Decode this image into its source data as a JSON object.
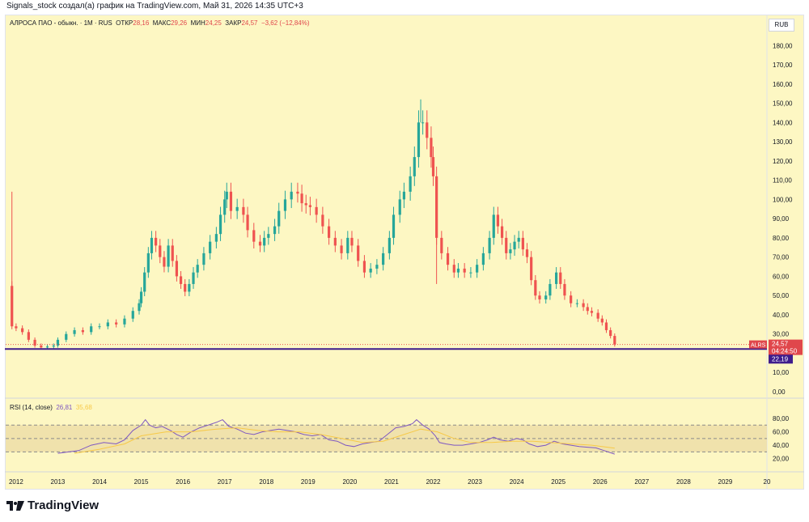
{
  "caption": "Signals_stock создал(а) график на TradingView.com, Май 31, 2026 14:35 UTC+3",
  "legend": {
    "symbol": "АЛРОСА ПАО - обыкн. · 1М · RUS",
    "open_label": "ОТКР",
    "open_value": "28,16",
    "high_label": "МАКС",
    "high_value": "29,26",
    "low_label": "МИН",
    "low_value": "24,25",
    "close_label": "ЗАКР",
    "close_value": "24,57",
    "change": "−3,62 (−12,84%)"
  },
  "rsi_legend": {
    "title": "RSI (14, close)",
    "rsi_value": "26,81",
    "ma_value": "35,68"
  },
  "currency": "RUB",
  "price_tag": {
    "ticker": "ALRS",
    "price": "24,57",
    "countdown": "04:24:50",
    "level": "22,19"
  },
  "colors": {
    "background": "#fdf7c3",
    "up": "#26a69a",
    "down": "#ef5350",
    "level_line": "#3f1d8c",
    "rsi": "#7e57c2",
    "rsi_ma": "#f7c948"
  },
  "brand": "TradingView",
  "brand_icon": "tradingview-logo-icon",
  "chart_data": [
    {
      "type": "candlestick",
      "title": "АЛРОСА ПАО - обыкн. · 1М · RUS",
      "y_axis_ticks": [
        "0,00",
        "10,00",
        "20,00",
        "30,00",
        "40,00",
        "50,00",
        "60,00",
        "70,00",
        "80,00",
        "90,00",
        "100,00",
        "110,00",
        "120,00",
        "130,00",
        "140,00",
        "150,00",
        "160,00",
        "170,00",
        "180,00"
      ],
      "x_axis_ticks": [
        "2012",
        "2013",
        "2014",
        "2015",
        "2016",
        "2017",
        "2018",
        "2019",
        "2020",
        "2021",
        "2022",
        "2023",
        "2024",
        "2025",
        "2026",
        "2027",
        "2028",
        "2029",
        "20"
      ],
      "ylim": [
        0,
        186
      ],
      "xlim": [
        2011.75,
        2030
      ],
      "horizontal_level": 22.19,
      "path": [
        [
          2011.83,
          55
        ],
        [
          2011.9,
          34
        ],
        [
          2012.0,
          33
        ],
        [
          2012.15,
          31
        ],
        [
          2012.3,
          27
        ],
        [
          2012.45,
          24
        ],
        [
          2012.6,
          23
        ],
        [
          2012.75,
          23.5
        ],
        [
          2012.9,
          24
        ],
        [
          2013.0,
          27
        ],
        [
          2013.2,
          30
        ],
        [
          2013.4,
          32
        ],
        [
          2013.6,
          31
        ],
        [
          2013.8,
          34
        ],
        [
          2014.0,
          34
        ],
        [
          2014.2,
          36
        ],
        [
          2014.4,
          35
        ],
        [
          2014.6,
          38
        ],
        [
          2014.8,
          42
        ],
        [
          2014.95,
          46
        ],
        [
          2015.0,
          52
        ],
        [
          2015.08,
          62
        ],
        [
          2015.17,
          72
        ],
        [
          2015.25,
          80
        ],
        [
          2015.35,
          76
        ],
        [
          2015.45,
          70
        ],
        [
          2015.55,
          65
        ],
        [
          2015.65,
          76
        ],
        [
          2015.75,
          68
        ],
        [
          2015.85,
          60
        ],
        [
          2015.95,
          56
        ],
        [
          2016.05,
          52
        ],
        [
          2016.15,
          56
        ],
        [
          2016.25,
          62
        ],
        [
          2016.35,
          66
        ],
        [
          2016.5,
          72
        ],
        [
          2016.65,
          78
        ],
        [
          2016.8,
          82
        ],
        [
          2016.9,
          92
        ],
        [
          2017.0,
          100
        ],
        [
          2017.05,
          104
        ],
        [
          2017.15,
          94
        ],
        [
          2017.3,
          96
        ],
        [
          2017.45,
          92
        ],
        [
          2017.55,
          84
        ],
        [
          2017.7,
          78
        ],
        [
          2017.85,
          76
        ],
        [
          2017.95,
          80
        ],
        [
          2018.05,
          82
        ],
        [
          2018.2,
          86
        ],
        [
          2018.3,
          94
        ],
        [
          2018.45,
          100
        ],
        [
          2018.6,
          104
        ],
        [
          2018.75,
          103
        ],
        [
          2018.85,
          98
        ],
        [
          2018.95,
          97
        ],
        [
          2019.05,
          96
        ],
        [
          2019.2,
          92
        ],
        [
          2019.35,
          86
        ],
        [
          2019.5,
          80
        ],
        [
          2019.65,
          76
        ],
        [
          2019.8,
          72
        ],
        [
          2019.95,
          80
        ],
        [
          2020.05,
          76
        ],
        [
          2020.2,
          68
        ],
        [
          2020.35,
          62
        ],
        [
          2020.5,
          64
        ],
        [
          2020.65,
          66
        ],
        [
          2020.8,
          72
        ],
        [
          2020.95,
          80
        ],
        [
          2021.05,
          92
        ],
        [
          2021.2,
          100
        ],
        [
          2021.3,
          104
        ],
        [
          2021.45,
          112
        ],
        [
          2021.55,
          122
        ],
        [
          2021.65,
          140
        ],
        [
          2021.75,
          140
        ],
        [
          2021.85,
          132
        ],
        [
          2021.95,
          122
        ],
        [
          2022.0,
          112
        ],
        [
          2022.08,
          80
        ],
        [
          2022.2,
          72
        ],
        [
          2022.35,
          66
        ],
        [
          2022.5,
          62
        ],
        [
          2022.6,
          64
        ],
        [
          2022.75,
          62
        ],
        [
          2022.9,
          62
        ],
        [
          2023.05,
          66
        ],
        [
          2023.2,
          72
        ],
        [
          2023.35,
          80
        ],
        [
          2023.45,
          92
        ],
        [
          2023.55,
          86
        ],
        [
          2023.65,
          80
        ],
        [
          2023.75,
          72
        ],
        [
          2023.85,
          74
        ],
        [
          2023.95,
          78
        ],
        [
          2024.05,
          80
        ],
        [
          2024.15,
          74
        ],
        [
          2024.25,
          70
        ],
        [
          2024.35,
          58
        ],
        [
          2024.45,
          50
        ],
        [
          2024.55,
          48
        ],
        [
          2024.7,
          50
        ],
        [
          2024.8,
          56
        ],
        [
          2024.95,
          62
        ],
        [
          2025.05,
          56
        ],
        [
          2025.15,
          50
        ],
        [
          2025.3,
          46
        ],
        [
          2025.45,
          46
        ],
        [
          2025.6,
          44
        ],
        [
          2025.7,
          42
        ],
        [
          2025.8,
          41
        ],
        [
          2025.95,
          38
        ],
        [
          2026.05,
          36
        ],
        [
          2026.15,
          32
        ],
        [
          2026.25,
          29
        ],
        [
          2026.35,
          24.57
        ]
      ],
      "last_price": 24.57,
      "last_open": 28.16
    },
    {
      "type": "line",
      "title": "RSI (14, close)",
      "y_axis_ticks": [
        "20,00",
        "40,00",
        "60,00",
        "80,00"
      ],
      "ylim": [
        10,
        86
      ],
      "bands": [
        30,
        50,
        70
      ],
      "series": [
        {
          "values": [
            [
              2013.0,
              28
            ],
            [
              2013.5,
              32
            ],
            [
              2013.8,
              40
            ],
            [
              2014.1,
              44
            ],
            [
              2014.4,
              42
            ],
            [
              2014.6,
              48
            ],
            [
              2014.8,
              62
            ],
            [
              2015.0,
              70
            ],
            [
              2015.1,
              78
            ],
            [
              2015.2,
              70
            ],
            [
              2015.35,
              66
            ],
            [
              2015.5,
              68
            ],
            [
              2015.7,
              62
            ],
            [
              2015.85,
              56
            ],
            [
              2016.0,
              52
            ],
            [
              2016.2,
              60
            ],
            [
              2016.4,
              66
            ],
            [
              2016.6,
              70
            ],
            [
              2016.8,
              74
            ],
            [
              2016.95,
              78
            ],
            [
              2017.1,
              68
            ],
            [
              2017.3,
              64
            ],
            [
              2017.5,
              58
            ],
            [
              2017.7,
              56
            ],
            [
              2017.9,
              60
            ],
            [
              2018.1,
              62
            ],
            [
              2018.3,
              64
            ],
            [
              2018.5,
              62
            ],
            [
              2018.7,
              60
            ],
            [
              2018.9,
              56
            ],
            [
              2019.1,
              54
            ],
            [
              2019.3,
              56
            ],
            [
              2019.5,
              48
            ],
            [
              2019.7,
              46
            ],
            [
              2019.9,
              40
            ],
            [
              2020.1,
              38
            ],
            [
              2020.3,
              42
            ],
            [
              2020.5,
              44
            ],
            [
              2020.7,
              46
            ],
            [
              2020.9,
              56
            ],
            [
              2021.1,
              66
            ],
            [
              2021.3,
              68
            ],
            [
              2021.5,
              72
            ],
            [
              2021.6,
              78
            ],
            [
              2021.75,
              70
            ],
            [
              2021.9,
              64
            ],
            [
              2022.05,
              54
            ],
            [
              2022.15,
              44
            ],
            [
              2022.3,
              42
            ],
            [
              2022.5,
              40
            ],
            [
              2022.7,
              40
            ],
            [
              2022.9,
              42
            ],
            [
              2023.1,
              44
            ],
            [
              2023.3,
              48
            ],
            [
              2023.45,
              52
            ],
            [
              2023.6,
              48
            ],
            [
              2023.8,
              46
            ],
            [
              2024.0,
              50
            ],
            [
              2024.15,
              48
            ],
            [
              2024.3,
              42
            ],
            [
              2024.5,
              38
            ],
            [
              2024.7,
              40
            ],
            [
              2024.9,
              46
            ],
            [
              2025.1,
              42
            ],
            [
              2025.3,
              40
            ],
            [
              2025.5,
              38
            ],
            [
              2025.7,
              37
            ],
            [
              2025.9,
              36
            ],
            [
              2026.1,
              32
            ],
            [
              2026.35,
              26.81
            ]
          ]
        },
        {
          "values": [
            [
              2013.4,
              28
            ],
            [
              2014.0,
              34
            ],
            [
              2014.6,
              42
            ],
            [
              2015.0,
              54
            ],
            [
              2015.6,
              60
            ],
            [
              2016.2,
              60
            ],
            [
              2016.8,
              64
            ],
            [
              2017.3,
              66
            ],
            [
              2017.8,
              62
            ],
            [
              2018.3,
              60
            ],
            [
              2018.8,
              60
            ],
            [
              2019.3,
              56
            ],
            [
              2019.8,
              50
            ],
            [
              2020.3,
              44
            ],
            [
              2020.8,
              46
            ],
            [
              2021.3,
              56
            ],
            [
              2021.7,
              64
            ],
            [
              2022.1,
              60
            ],
            [
              2022.5,
              50
            ],
            [
              2022.9,
              44
            ],
            [
              2023.4,
              44
            ],
            [
              2023.9,
              46
            ],
            [
              2024.4,
              46
            ],
            [
              2024.8,
              44
            ],
            [
              2025.3,
              42
            ],
            [
              2025.8,
              40
            ],
            [
              2026.35,
              35.68
            ]
          ]
        }
      ]
    }
  ]
}
